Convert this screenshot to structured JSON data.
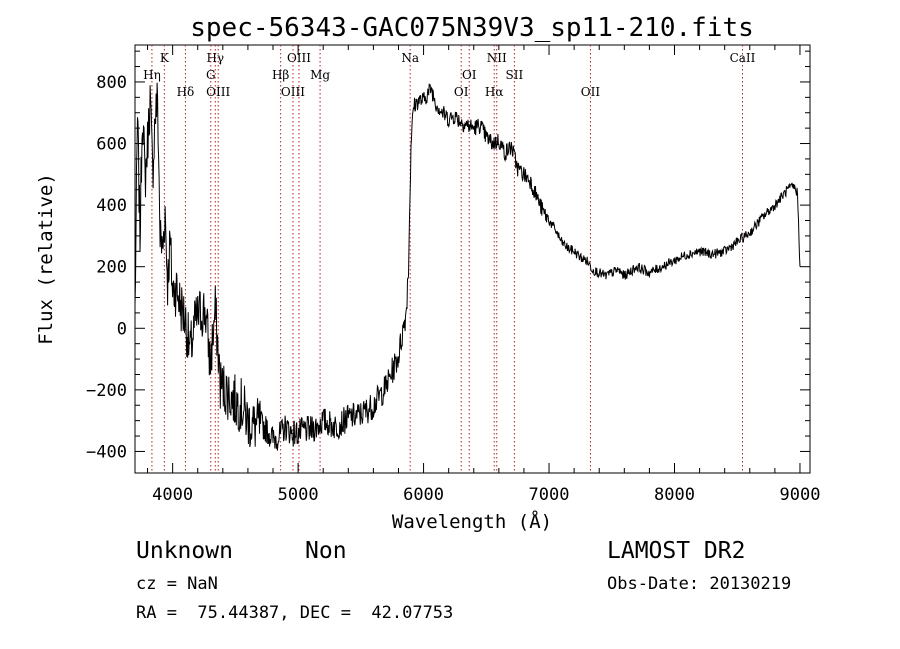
{
  "chart_data": {
    "type": "line",
    "title": "spec-56343-GAC075N39V3_sp11-210.fits",
    "xlabel": "Wavelength (Å)",
    "ylabel": "Flux (relative)",
    "xlim": [
      3700,
      9080
    ],
    "ylim": [
      -470,
      920
    ],
    "xticks": [
      4000,
      5000,
      6000,
      7000,
      8000,
      9000
    ],
    "yticks": [
      -400,
      -200,
      0,
      200,
      400,
      600,
      800
    ],
    "grid": false,
    "series": [
      {
        "color": "#000000",
        "x": [
          3700,
          3720,
          3740,
          3760,
          3780,
          3800,
          3820,
          3840,
          3860,
          3880,
          3900,
          3920,
          3940,
          3960,
          3980,
          4000,
          4030,
          4060,
          4100,
          4140,
          4180,
          4220,
          4260,
          4300,
          4340,
          4380,
          4420,
          4460,
          4500,
          4550,
          4600,
          4650,
          4700,
          4750,
          4800,
          4850,
          4900,
          4950,
          5000,
          5050,
          5100,
          5150,
          5200,
          5300,
          5400,
          5500,
          5600,
          5700,
          5750,
          5800,
          5830,
          5860,
          5880,
          5900,
          5920,
          5960,
          6000,
          6030,
          6060,
          6100,
          6150,
          6200,
          6250,
          6300,
          6350,
          6400,
          6450,
          6500,
          6550,
          6600,
          6650,
          6700,
          6750,
          6800,
          6850,
          6900,
          6950,
          7000,
          7050,
          7100,
          7150,
          7200,
          7250,
          7300,
          7350,
          7400,
          7450,
          7500,
          7550,
          7600,
          7700,
          7800,
          7900,
          8000,
          8100,
          8200,
          8300,
          8400,
          8500,
          8600,
          8700,
          8800,
          8900,
          8950,
          8980,
          9000
        ],
        "y": [
          60,
          680,
          300,
          720,
          480,
          600,
          750,
          500,
          690,
          740,
          300,
          250,
          380,
          150,
          280,
          120,
          130,
          80,
          30,
          -80,
          20,
          50,
          60,
          -120,
          60,
          -180,
          -200,
          -220,
          -240,
          -250,
          -300,
          -320,
          -310,
          -330,
          -360,
          -350,
          -320,
          -340,
          -340,
          -330,
          -330,
          -320,
          -300,
          -320,
          -290,
          -280,
          -250,
          -190,
          -140,
          -90,
          -20,
          50,
          200,
          600,
          720,
          740,
          740,
          760,
          780,
          730,
          700,
          680,
          690,
          670,
          660,
          650,
          660,
          620,
          600,
          610,
          570,
          590,
          520,
          500,
          480,
          430,
          380,
          350,
          320,
          280,
          260,
          250,
          230,
          220,
          190,
          180,
          170,
          180,
          190,
          170,
          200,
          180,
          200,
          220,
          240,
          250,
          240,
          250,
          280,
          310,
          360,
          400,
          450,
          460,
          440,
          200
        ]
      }
    ],
    "lines": [
      {
        "label": "Hη",
        "x": 3835,
        "row": 2
      },
      {
        "label": "K",
        "x": 3934,
        "row": 1
      },
      {
        "label": "Hδ",
        "x": 4102,
        "row": 3
      },
      {
        "label": "Hγ",
        "x": 4340,
        "row": 1
      },
      {
        "label": "G",
        "x": 4304,
        "row": 2
      },
      {
        "label": "OIII",
        "x": 4363,
        "row": 3
      },
      {
        "label": "Hβ",
        "x": 4861,
        "row": 2
      },
      {
        "label": "OIII",
        "x": 5007,
        "row": 1
      },
      {
        "label": "OIII",
        "x": 4959,
        "row": 3
      },
      {
        "label": "Mg",
        "x": 5175,
        "row": 2
      },
      {
        "label": "Na",
        "x": 5893,
        "row": 1
      },
      {
        "label": "OI",
        "x": 6364,
        "row": 2
      },
      {
        "label": "OI",
        "x": 6300,
        "row": 3
      },
      {
        "label": "NII",
        "x": 6583,
        "row": 1
      },
      {
        "label": "Hα",
        "x": 6563,
        "row": 3
      },
      {
        "label": "SII",
        "x": 6724,
        "row": 2
      },
      {
        "label": "OII",
        "x": 7330,
        "row": 3
      },
      {
        "label": "CaII",
        "x": 8542,
        "row": 1
      }
    ]
  },
  "info": {
    "class_label": "Unknown",
    "subclass_label": "Non",
    "cz": "cz = NaN",
    "radec": "RA =  75.44387, DEC =  42.07753",
    "survey": "LAMOST DR2",
    "obs_date": "Obs-Date: 20130219"
  }
}
